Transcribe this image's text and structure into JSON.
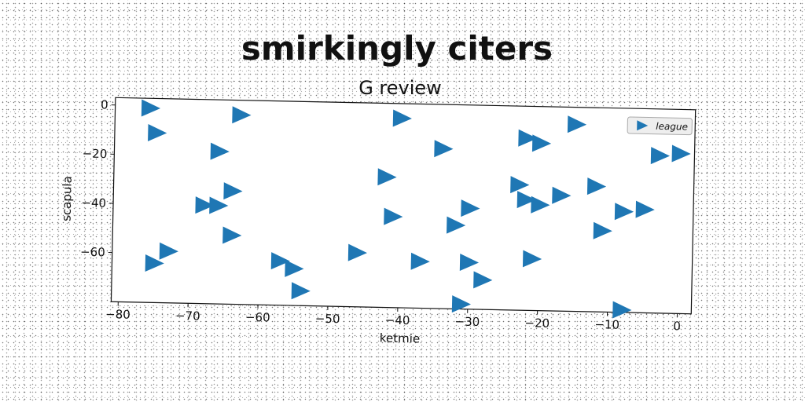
{
  "chart_data": {
    "type": "scatter",
    "title": "smirkingly citers",
    "subtitle": "G review",
    "xlabel": "ketmie",
    "ylabel": "scapula",
    "xlim": [
      -81,
      2
    ],
    "ylim": [
      -80,
      3
    ],
    "xticks": [
      -80,
      -70,
      -60,
      -50,
      -40,
      -30,
      -20,
      -10,
      0
    ],
    "yticks": [
      0,
      -20,
      -40,
      -60
    ],
    "xtick_labels": [
      "−80",
      "−70",
      "−60",
      "−50",
      "−40",
      "−30",
      "−20",
      "−10",
      "0"
    ],
    "ytick_labels": [
      "0",
      "−20",
      "−40",
      "−60"
    ],
    "grid": false,
    "legend_position": "top-right",
    "marker": "triangle-right",
    "colors": {
      "series": "#1f77b4",
      "axes": "#111111"
    },
    "series": [
      {
        "name": "league",
        "points": [
          [
            -76,
            -1
          ],
          [
            -75,
            -11
          ],
          [
            -63,
            -3
          ],
          [
            -66,
            -18
          ],
          [
            -40,
            -3
          ],
          [
            -34,
            -15
          ],
          [
            -15,
            -4
          ],
          [
            -22,
            -10
          ],
          [
            -20,
            -12
          ],
          [
            -3,
            -16
          ],
          [
            0,
            -15
          ],
          [
            -42,
            -27
          ],
          [
            -23,
            -29
          ],
          [
            -12,
            -29
          ],
          [
            -17,
            -33
          ],
          [
            -64,
            -34
          ],
          [
            -68,
            -40
          ],
          [
            -66,
            -40
          ],
          [
            -22,
            -35
          ],
          [
            -20,
            -37
          ],
          [
            -30,
            -39
          ],
          [
            -41,
            -43
          ],
          [
            -8,
            -39
          ],
          [
            -5,
            -38
          ],
          [
            -32,
            -46
          ],
          [
            -11,
            -47
          ],
          [
            -64,
            -52
          ],
          [
            -73,
            -59
          ],
          [
            -75,
            -64
          ],
          [
            -46,
            -58
          ],
          [
            -21,
            -59
          ],
          [
            -37,
            -61
          ],
          [
            -30,
            -61
          ],
          [
            -57,
            -62
          ],
          [
            -55,
            -65
          ],
          [
            -28,
            -68
          ],
          [
            -54,
            -74
          ],
          [
            -31,
            -78
          ],
          [
            -8,
            -79
          ]
        ]
      }
    ]
  }
}
